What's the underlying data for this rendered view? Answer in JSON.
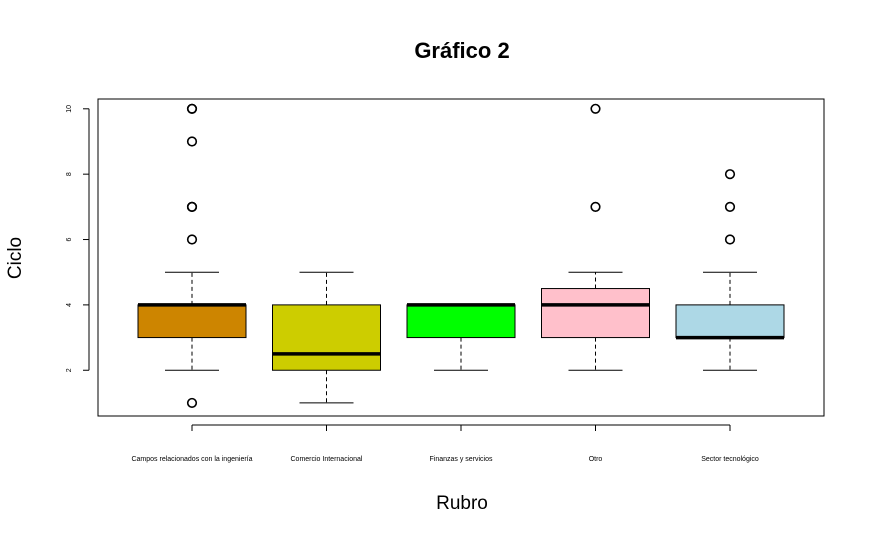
{
  "chart_data": {
    "type": "boxplot",
    "title": "Gráfico 2",
    "xlabel": "Rubro",
    "ylabel": "Ciclo",
    "ylim": [
      0.6,
      10.3
    ],
    "yticks": [
      2,
      4,
      6,
      8,
      10
    ],
    "ytick_labels": [
      "2",
      "4",
      "6",
      "8",
      "10"
    ],
    "grid": false,
    "categories": [
      "Campos relacionados con la ingeniería",
      "Comercio Internacional",
      "Finanzas y servicios",
      "Otro",
      "Sector tecnológico"
    ],
    "series": [
      {
        "category": "Campos relacionados con la ingeniería",
        "color": "#CD8500",
        "whisker_low": 2,
        "q1": 3,
        "median": 4,
        "q3": 4,
        "whisker_high": 5,
        "outliers": [
          1,
          6,
          7,
          7,
          9,
          10,
          10
        ]
      },
      {
        "category": "Comercio Internacional",
        "color": "#CDCD00",
        "whisker_low": 1,
        "q1": 2,
        "median": 2.5,
        "q3": 4,
        "whisker_high": 5,
        "outliers": []
      },
      {
        "category": "Finanzas y servicios",
        "color": "#00FF00",
        "whisker_low": 2,
        "q1": 3,
        "median": 4,
        "q3": 4,
        "whisker_high": 4,
        "outliers": []
      },
      {
        "category": "Otro",
        "color": "#FFC0CB",
        "whisker_low": 2,
        "q1": 3,
        "median": 4,
        "q3": 4.5,
        "whisker_high": 5,
        "outliers": [
          7,
          10
        ]
      },
      {
        "category": "Sector tecnológico",
        "color": "#ADD8E6",
        "whisker_low": 2,
        "q1": 3,
        "median": 3,
        "q3": 4,
        "whisker_high": 5,
        "outliers": [
          6,
          7,
          8
        ]
      }
    ]
  }
}
